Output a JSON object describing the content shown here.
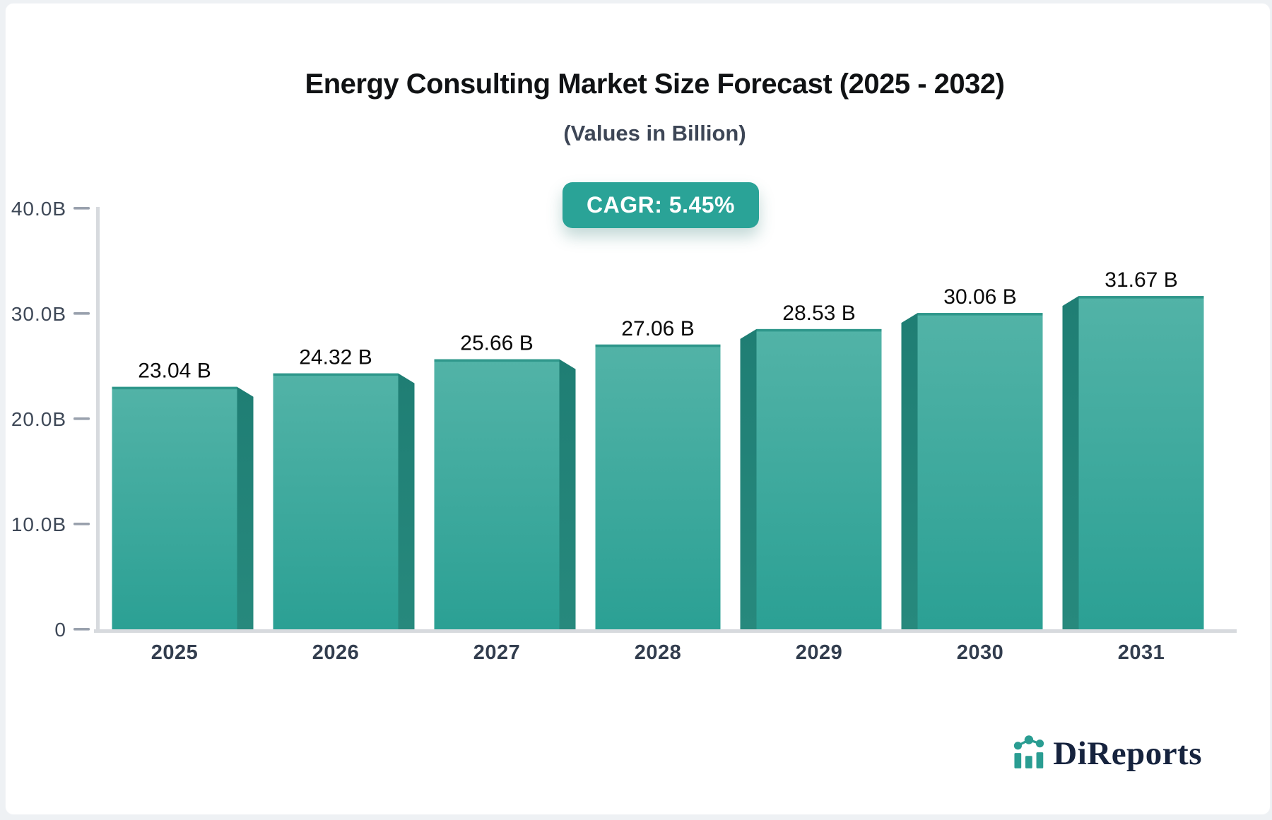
{
  "header": {
    "title": "Energy Consulting Market Size Forecast (2025 - 2032)",
    "subtitle": "(Values in Billion)",
    "cagr_badge": "CAGR: 5.45%"
  },
  "chart_data": {
    "type": "bar",
    "title": "Energy Consulting Market Size Forecast (2025 - 2032)",
    "subtitle": "(Values in Billion)",
    "cagr_percent": 5.45,
    "categories": [
      "2025",
      "2026",
      "2027",
      "2028",
      "2029",
      "2030",
      "2031"
    ],
    "values": [
      23.04,
      24.32,
      25.66,
      27.06,
      28.53,
      30.06,
      31.67
    ],
    "value_labels": [
      "23.04 B",
      "24.32 B",
      "25.66 B",
      "27.06 B",
      "28.53 B",
      "30.06 B",
      "31.67 B"
    ],
    "unit": "Billion",
    "ylim": [
      0,
      40
    ],
    "ytick_values": [
      0,
      10,
      20,
      30,
      40
    ],
    "ytick_labels": [
      "0",
      "10.0B",
      "20.0B",
      "30.0B",
      "40.0B"
    ],
    "grid": false,
    "legend": false,
    "bar_style": "3d-extruded, side faces angle toward center vanishing point",
    "colors": {
      "bar_top": "#52b3a7",
      "bar_bottom": "#2ba094",
      "bar_cap": "#2f978b",
      "bar_side": "#1f7e74",
      "accent": "#2aa397",
      "axis_line": "#d7dade",
      "tick_dash": "#99a1ad",
      "tick_text": "#3e4857",
      "category_text": "#323d4e",
      "value_text": "#0a0a0a"
    }
  },
  "branding": {
    "logo_text": "DiReports",
    "logo_icon": "mini-bar-chart-icon",
    "logo_icon_color": "#2a9d92",
    "logo_text_color": "#16233e"
  }
}
